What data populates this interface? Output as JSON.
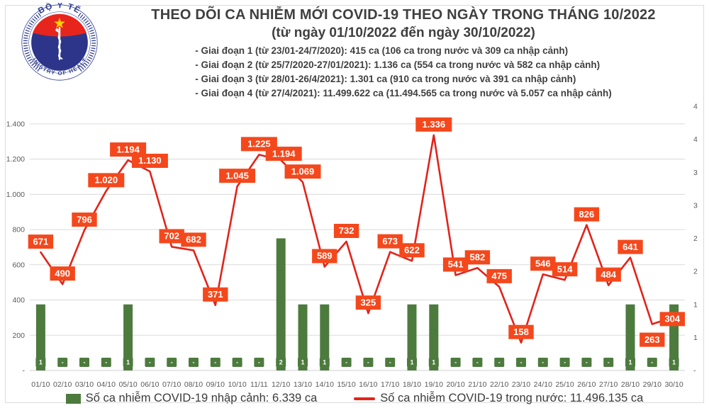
{
  "header": {
    "logo": {
      "top_text": "BỘ Y TẾ",
      "bottom_text": "MINISTRY OF HEALTH"
    },
    "title": "THEO DÕI CA NHIỄM MỚI COVID-19 THEO NGÀY TRONG THÁNG 10/2022",
    "subtitle": "(từ ngày 01/10/2022 đến ngày 30/10/2022)",
    "notes": [
      "- Giai đoạn 1 (từ 23/01-24/7/2020): 415 ca (106 ca trong nước và 309 ca nhập cảnh)",
      "- Giai đoạn 2 (từ 25/7/2020-27/01/2021): 1.136 ca (554 ca trong nước và 582 ca nhập cảnh)",
      "- Giai đoạn 3 (từ 28/01-26/4/2021): 1.301 ca (910 ca trong nước và 391 ca nhập cảnh)",
      "- Giai đoạn 4 (từ 27/4/2021): 11.499.622 ca (11.494.565 ca trong nước và 5.057 ca nhập cảnh)"
    ]
  },
  "chart_data": {
    "type": "combo-bar-line",
    "x": [
      "01/10",
      "02/10",
      "03/10",
      "04/10",
      "05/10",
      "06/10",
      "07/10",
      "08/10",
      "09/10",
      "10/10",
      "11/11",
      "12/10",
      "13/10",
      "14/10",
      "15/10",
      "16/10",
      "17/10",
      "18/10",
      "19/10",
      "20/10",
      "21/10",
      "22/10",
      "23/10",
      "24/10",
      "25/10",
      "26/10",
      "27/10",
      "28/10",
      "29/10",
      "30/10"
    ],
    "left_axis": {
      "max": 1500,
      "grid_step": 200,
      "ticks": [
        "1.400",
        "1.200",
        "1.000",
        "800",
        "600",
        "400",
        "200",
        "-"
      ]
    },
    "right_axis": {
      "max": 4,
      "ticks": [
        "4",
        "4",
        "3",
        "3",
        "2",
        "2",
        "1",
        "1",
        "-"
      ]
    },
    "grid": true,
    "series": [
      {
        "name": "Số ca nhiễm COVID-19 nhập cảnh",
        "type": "bar",
        "axis": "right",
        "color": "#4d7b3e",
        "values": [
          1,
          0,
          0,
          0,
          1,
          0,
          0,
          0,
          0,
          0,
          0,
          2,
          1,
          1,
          0,
          0,
          0,
          1,
          1,
          0,
          0,
          0,
          0,
          0,
          0,
          0,
          0,
          1,
          0,
          1
        ],
        "labels": [
          "1",
          "-",
          "-",
          "-",
          "1",
          "-",
          "-",
          "-",
          "-",
          "-",
          "-",
          "2",
          "1",
          "1",
          "-",
          "-",
          "-",
          "1",
          "1",
          "-",
          "-",
          "-",
          "-",
          "-",
          "-",
          "-",
          "-",
          "1",
          "-",
          "1"
        ]
      },
      {
        "name": "Số ca nhiễm COVID-19 trong nước",
        "type": "line",
        "axis": "left",
        "color": "#e2231a",
        "label_color": "#f4481c",
        "values": [
          671,
          490,
          796,
          1020,
          1194,
          1130,
          702,
          682,
          371,
          1045,
          1225,
          1194,
          1069,
          589,
          732,
          325,
          673,
          622,
          1336,
          541,
          582,
          475,
          158,
          546,
          514,
          826,
          484,
          641,
          263,
          304
        ],
        "labels": [
          "671",
          "490",
          "796",
          "1.020",
          "1.194",
          "1.130",
          "702",
          "682",
          "371",
          "1.045",
          "1.225",
          "1.194",
          "1.069",
          "589",
          "732",
          "325",
          "673",
          "622",
          "1.336",
          "541",
          "582",
          "475",
          "158",
          "546",
          "514",
          "826",
          "484",
          "641",
          "263",
          "304"
        ]
      }
    ],
    "legend": [
      {
        "label": "Số ca nhiễm COVID-19 nhập cảnh: 6.339 ca",
        "marker": "bar",
        "color": "#4d7b3e"
      },
      {
        "label": "Số ca nhiễm COVID-19 trong nước: 11.496.135 ca",
        "marker": "line",
        "color": "#e2231a"
      }
    ]
  }
}
